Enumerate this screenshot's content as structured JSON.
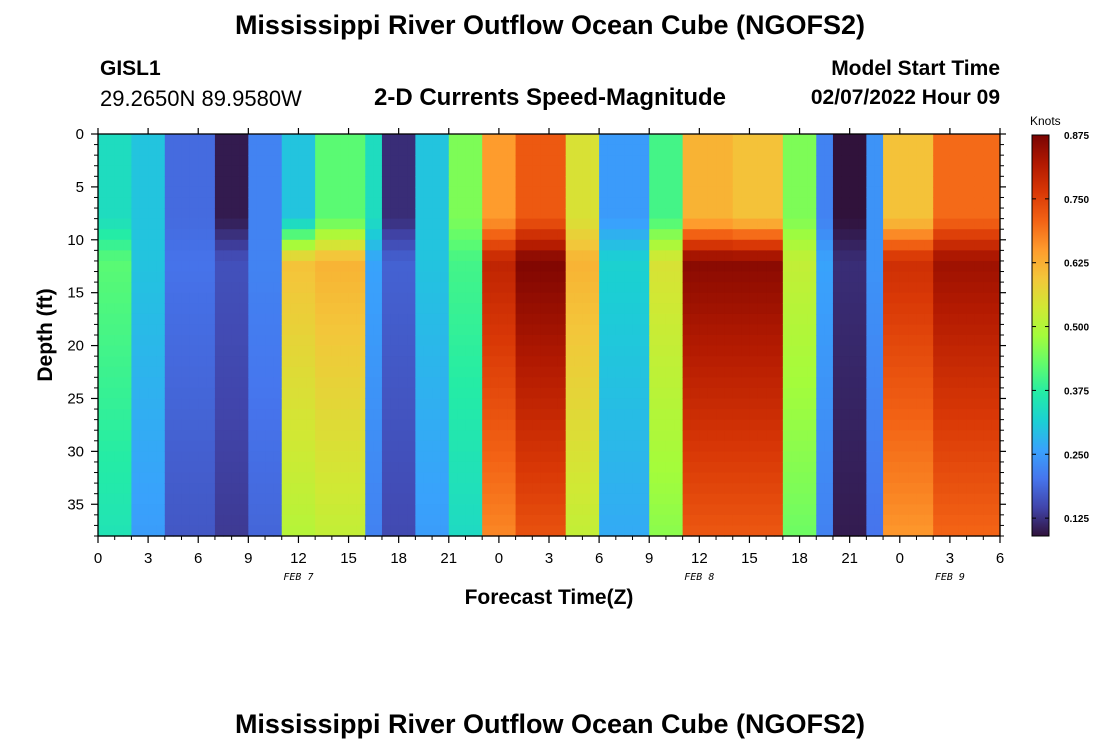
{
  "page": {
    "title_top": "Mississippi River Outflow Ocean Cube (NGOFS2)",
    "title_bottom": "Mississippi River Outflow Ocean Cube (NGOFS2)",
    "station_id": "GISL1",
    "station_coords": "29.2650N  89.9580W",
    "subtitle": "2-D Currents Speed-Magnitude",
    "model_start_label": "Model Start Time",
    "model_start_value": "02/07/2022 Hour 09"
  },
  "chart_data": {
    "type": "heatmap",
    "title": "2-D Currents Speed-Magnitude",
    "xlabel": "Forecast Time(Z)",
    "ylabel": "Depth (ft)",
    "x_range": [
      0,
      54
    ],
    "y_range": [
      0,
      38
    ],
    "y_inverted": true,
    "x_ticks": [
      {
        "x": 0,
        "label": "0"
      },
      {
        "x": 3,
        "label": "3"
      },
      {
        "x": 6,
        "label": "6"
      },
      {
        "x": 9,
        "label": "9"
      },
      {
        "x": 12,
        "label": "12"
      },
      {
        "x": 15,
        "label": "15"
      },
      {
        "x": 18,
        "label": "18"
      },
      {
        "x": 21,
        "label": "21"
      },
      {
        "x": 24,
        "label": "0"
      },
      {
        "x": 27,
        "label": "3"
      },
      {
        "x": 30,
        "label": "6"
      },
      {
        "x": 33,
        "label": "9"
      },
      {
        "x": 36,
        "label": "12"
      },
      {
        "x": 39,
        "label": "15"
      },
      {
        "x": 42,
        "label": "18"
      },
      {
        "x": 45,
        "label": "21"
      },
      {
        "x": 48,
        "label": "0"
      },
      {
        "x": 51,
        "label": "3"
      },
      {
        "x": 54,
        "label": "6"
      }
    ],
    "date_labels": [
      {
        "x": 12,
        "label": "FEB 7"
      },
      {
        "x": 36,
        "label": "FEB 8"
      },
      {
        "x": 51,
        "label": "FEB 9"
      }
    ],
    "y_ticks": [
      0,
      5,
      10,
      15,
      20,
      25,
      30,
      35
    ],
    "colorbar": {
      "unit": "Knots",
      "range": [
        0.09,
        0.875
      ],
      "ticks": [
        "0.125",
        "0.250",
        "0.375",
        "0.500",
        "0.625",
        "0.750",
        "0.875"
      ],
      "colors": [
        "#30123b",
        "#4145ab",
        "#4675ed",
        "#39a2fc",
        "#1bcfd4",
        "#24eca6",
        "#61fc6c",
        "#a4fc3b",
        "#d1e834",
        "#f3c63a",
        "#fe9b2d",
        "#f36315",
        "#d93806",
        "#b11901",
        "#7a0402"
      ]
    },
    "regimes": [
      {
        "x_start": 0,
        "x_end": 2,
        "surface": 0.34,
        "deep": 0.42
      },
      {
        "x_start": 2,
        "x_end": 4,
        "surface": 0.3,
        "deep": 0.3
      },
      {
        "x_start": 4,
        "x_end": 7,
        "surface": 0.19,
        "deep": 0.2
      },
      {
        "x_start": 7,
        "x_end": 9,
        "surface": 0.1,
        "deep": 0.16
      },
      {
        "x_start": 9,
        "x_end": 11,
        "surface": 0.22,
        "deep": 0.22
      },
      {
        "x_start": 11,
        "x_end": 13,
        "surface": 0.3,
        "deep": 0.6
      },
      {
        "x_start": 13,
        "x_end": 16,
        "surface": 0.42,
        "deep": 0.62
      },
      {
        "x_start": 16,
        "x_end": 17,
        "surface": 0.34,
        "deep": 0.26
      },
      {
        "x_start": 17,
        "x_end": 19,
        "surface": 0.12,
        "deep": 0.18
      },
      {
        "x_start": 19,
        "x_end": 21,
        "surface": 0.3,
        "deep": 0.3
      },
      {
        "x_start": 21,
        "x_end": 23,
        "surface": 0.45,
        "deep": 0.4
      },
      {
        "x_start": 23,
        "x_end": 25,
        "surface": 0.65,
        "deep": 0.8
      },
      {
        "x_start": 25,
        "x_end": 28,
        "surface": 0.72,
        "deep": 0.87
      },
      {
        "x_start": 28,
        "x_end": 30,
        "surface": 0.55,
        "deep": 0.62
      },
      {
        "x_start": 30,
        "x_end": 33,
        "surface": 0.25,
        "deep": 0.32
      },
      {
        "x_start": 33,
        "x_end": 35,
        "surface": 0.4,
        "deep": 0.55
      },
      {
        "x_start": 35,
        "x_end": 38,
        "surface": 0.62,
        "deep": 0.86
      },
      {
        "x_start": 38,
        "x_end": 41,
        "surface": 0.6,
        "deep": 0.86
      },
      {
        "x_start": 41,
        "x_end": 43,
        "surface": 0.45,
        "deep": 0.52
      },
      {
        "x_start": 43,
        "x_end": 44,
        "surface": 0.22,
        "deep": 0.26
      },
      {
        "x_start": 44,
        "x_end": 46,
        "surface": 0.09,
        "deep": 0.12
      },
      {
        "x_start": 46,
        "x_end": 47,
        "surface": 0.24,
        "deep": 0.24
      },
      {
        "x_start": 47,
        "x_end": 50,
        "surface": 0.6,
        "deep": 0.78
      },
      {
        "x_start": 50,
        "x_end": 54,
        "surface": 0.7,
        "deep": 0.84
      }
    ]
  }
}
